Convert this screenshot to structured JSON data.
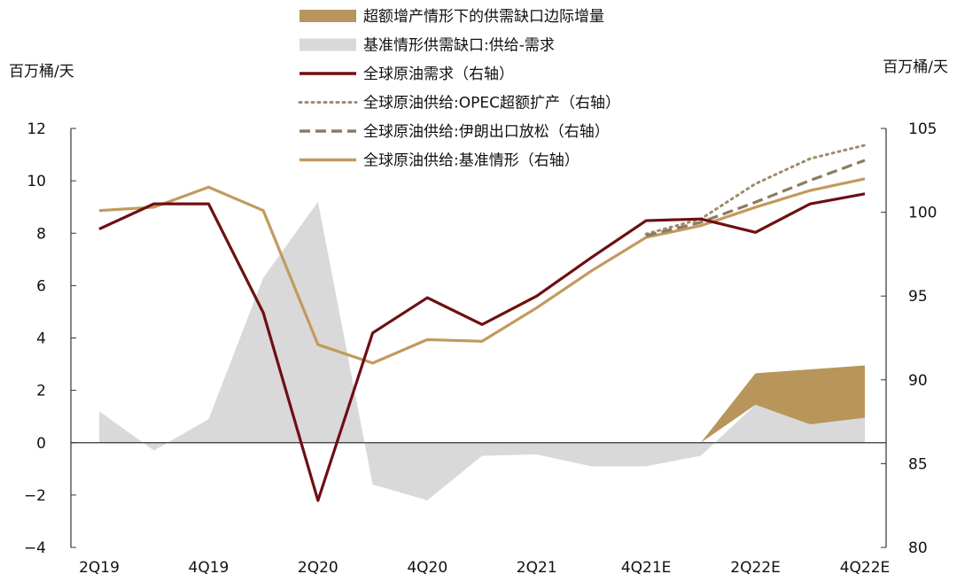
{
  "chart_data": {
    "type": "area+line",
    "left_unit": "百万桶/天",
    "right_unit": "百万桶/天",
    "categories": [
      "2Q19",
      "3Q19",
      "4Q19",
      "1Q20",
      "2Q20",
      "3Q20",
      "4Q20",
      "1Q21",
      "2Q21",
      "3Q21",
      "4Q21E",
      "1Q22E",
      "2Q22E",
      "3Q22E",
      "4Q22E"
    ],
    "x_tick_labels": [
      "2Q19",
      "",
      "4Q19",
      "",
      "2Q20",
      "",
      "4Q20",
      "",
      "2Q21",
      "",
      "4Q21E",
      "",
      "2Q22E",
      "",
      "4Q22E"
    ],
    "left_axis": {
      "min": -4,
      "max": 12,
      "ticks": [
        -4,
        -2,
        0,
        2,
        4,
        6,
        8,
        10,
        12
      ],
      "tick_labels": [
        "−4",
        "−2",
        "0",
        "2",
        "4",
        "6",
        "8",
        "10",
        "12"
      ]
    },
    "right_axis": {
      "min": 80,
      "max": 105,
      "ticks": [
        80,
        85,
        90,
        95,
        100,
        105
      ],
      "tick_labels": [
        "80",
        "85",
        "90",
        "95",
        "100",
        "105"
      ]
    },
    "areas": [
      {
        "name": "超额增产情形下的供需缺口边际增量",
        "axis": "left",
        "color": "#b8955b",
        "stacked_on": "基准情形供需缺口:供给-需求",
        "values": [
          0,
          0,
          0,
          0,
          0,
          0,
          0,
          0,
          0,
          0,
          0,
          0,
          1.2,
          2.1,
          2.0
        ]
      },
      {
        "name": "基准情形供需缺口:供给-需求",
        "axis": "left",
        "color": "#d9d9d9",
        "values": [
          1.2,
          -0.3,
          0.9,
          6.3,
          9.2,
          -1.6,
          -2.2,
          -0.5,
          -0.45,
          -0.9,
          -0.9,
          -0.5,
          1.45,
          0.7,
          0.95
        ]
      }
    ],
    "series": [
      {
        "name": "全球原油需求（右轴）",
        "axis": "right",
        "color": "#6e0f12",
        "dash": "solid",
        "values": [
          99.0,
          100.5,
          100.5,
          94.0,
          82.8,
          92.8,
          94.9,
          93.3,
          95.0,
          97.3,
          99.5,
          99.6,
          98.8,
          100.5,
          101.1
        ]
      },
      {
        "name": "全球原油供给:OPEC超额扩产（右轴）",
        "axis": "right",
        "color": "#a08c6a",
        "dash": "dotted",
        "values": [
          null,
          null,
          null,
          null,
          null,
          null,
          null,
          null,
          null,
          null,
          98.7,
          99.6,
          101.7,
          103.2,
          104.0
        ]
      },
      {
        "name": "全球原油供给:伊朗出口放松（右轴）",
        "axis": "right",
        "color": "#8b7b62",
        "dash": "dashed",
        "values": [
          null,
          null,
          null,
          null,
          null,
          null,
          null,
          null,
          null,
          null,
          98.6,
          99.4,
          100.6,
          101.9,
          103.1
        ]
      },
      {
        "name": "全球原油供给:基准情形（右轴）",
        "axis": "right",
        "color": "#c29a5e",
        "dash": "solid",
        "values": [
          100.1,
          100.3,
          101.5,
          100.1,
          92.1,
          91.0,
          92.4,
          92.3,
          94.3,
          96.5,
          98.5,
          99.2,
          100.3,
          101.3,
          102.0
        ]
      }
    ],
    "legend_placement": "top-center",
    "grid": false
  }
}
